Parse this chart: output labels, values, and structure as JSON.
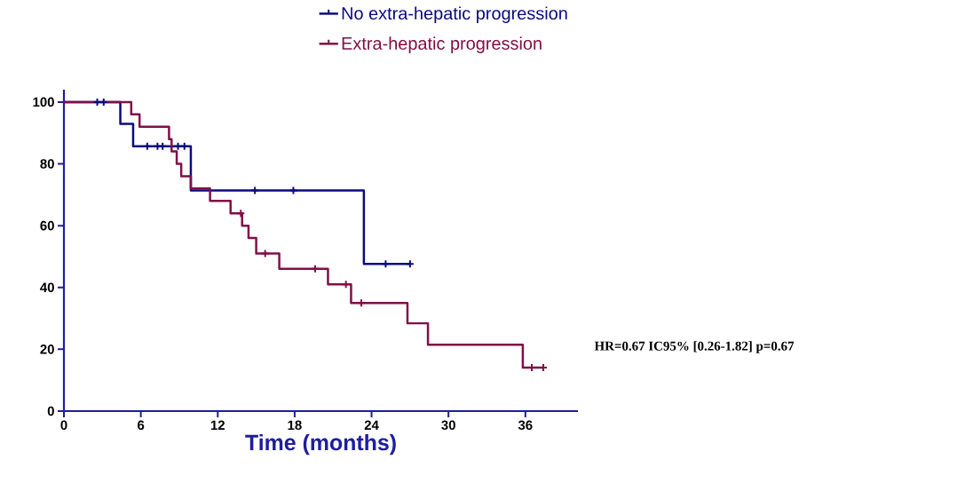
{
  "chart_data": {
    "type": "step",
    "xlabel": "Time (months)",
    "xlim": [
      0,
      40.1
    ],
    "ylim": [
      0,
      104
    ],
    "xticks": [
      0,
      6,
      12,
      18,
      24,
      30,
      36
    ],
    "yticks": [
      0,
      20,
      40,
      60,
      80,
      100
    ],
    "grid": false,
    "legend": "top",
    "series": [
      {
        "name": "No extra-hepatic progression",
        "color": "#0b0b80",
        "x": [
          0,
          4.4,
          5.4,
          9.9,
          23.4,
          27.0
        ],
        "values": [
          100,
          92.9,
          85.7,
          71.4,
          47.6,
          47.6
        ]
      },
      {
        "name": "Extra-hepatic progression",
        "color": "#7f1048",
        "x": [
          0,
          5.25,
          5.9,
          8.2,
          8.4,
          8.8,
          9.15,
          9.9,
          11.4,
          13.0,
          13.9,
          14.4,
          15.0,
          16.8,
          20.6,
          22.4,
          26.8,
          28.4,
          35.8,
          37.4
        ],
        "values": [
          100,
          96,
          92,
          88,
          84,
          80,
          76,
          72,
          68,
          64,
          60,
          56,
          51,
          46,
          41,
          35,
          28.4,
          21.5,
          14.1,
          14.1
        ]
      },
      {
        "type": "scatter",
        "marker": "cross",
        "color": "#0b0b80",
        "x": [
          2.6,
          3.1,
          6.5,
          7.3,
          7.7,
          8.9,
          9.4,
          14.9,
          17.9,
          25.1,
          27.0
        ],
        "values": [
          100,
          100,
          85.7,
          85.7,
          85.7,
          85.7,
          85.7,
          71.4,
          71.4,
          47.6,
          47.6
        ]
      },
      {
        "type": "scatter",
        "marker": "cross",
        "color": "#7f1048",
        "x": [
          13.8,
          15.7,
          19.6,
          22.0,
          23.2,
          36.5,
          37.4
        ],
        "values": [
          64,
          51,
          46,
          41,
          35,
          14.1,
          14.1
        ]
      }
    ],
    "annotations": [
      "HR=0.67 IC95% [0.26-1.82] p=0.67"
    ]
  }
}
